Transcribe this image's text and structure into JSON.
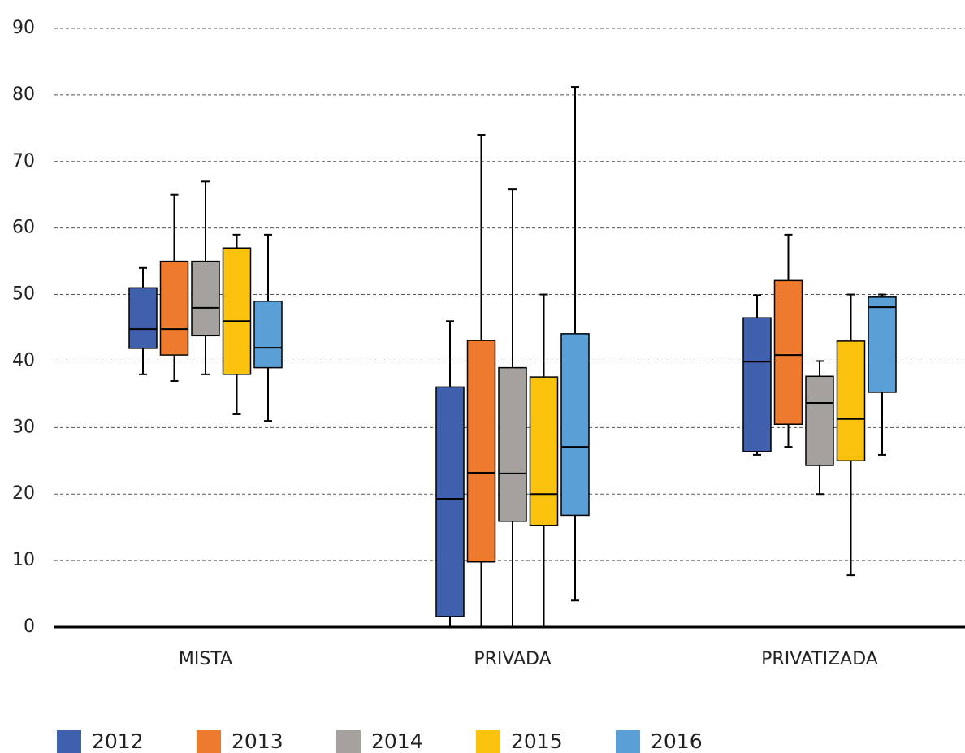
{
  "chart_data": {
    "type": "box",
    "categories": [
      "MISTA",
      "PRIVADA",
      "PRIVATIZADA"
    ],
    "ylim": [
      0,
      90
    ],
    "yticks": [
      0,
      10,
      20,
      30,
      40,
      50,
      60,
      70,
      80,
      90
    ],
    "grid": true,
    "legend": "bottom",
    "series": [
      {
        "name": "2012",
        "color": "#3f60ad",
        "values": [
          [
            38,
            41.9,
            44.8,
            51,
            54
          ],
          [
            0,
            1.6,
            19.3,
            36.1,
            46
          ],
          [
            25.9,
            26.4,
            39.9,
            46.5,
            49.9
          ]
        ]
      },
      {
        "name": "2013",
        "color": "#ee7a2e",
        "values": [
          [
            37,
            40.9,
            44.8,
            55,
            65
          ],
          [
            0,
            9.8,
            23.2,
            43.1,
            74
          ],
          [
            27.1,
            30.5,
            40.9,
            52.1,
            59
          ]
        ]
      },
      {
        "name": "2014",
        "color": "#a5a29d",
        "values": [
          [
            38,
            43.8,
            48,
            55,
            67
          ],
          [
            0,
            15.9,
            23.1,
            39,
            65.8
          ],
          [
            20,
            24.3,
            33.7,
            37.7,
            40
          ]
        ]
      },
      {
        "name": "2015",
        "color": "#fcc30e",
        "values": [
          [
            32,
            38,
            46,
            57,
            59
          ],
          [
            0,
            15.3,
            20,
            37.6,
            50
          ],
          [
            7.8,
            25,
            31.3,
            43,
            50
          ]
        ]
      },
      {
        "name": "2016",
        "color": "#5a9fd6",
        "values": [
          [
            31,
            39,
            42,
            49,
            59
          ],
          [
            4,
            16.8,
            27.1,
            44.1,
            81.2
          ],
          [
            25.9,
            35.3,
            48.1,
            49.6,
            50
          ]
        ]
      }
    ]
  }
}
